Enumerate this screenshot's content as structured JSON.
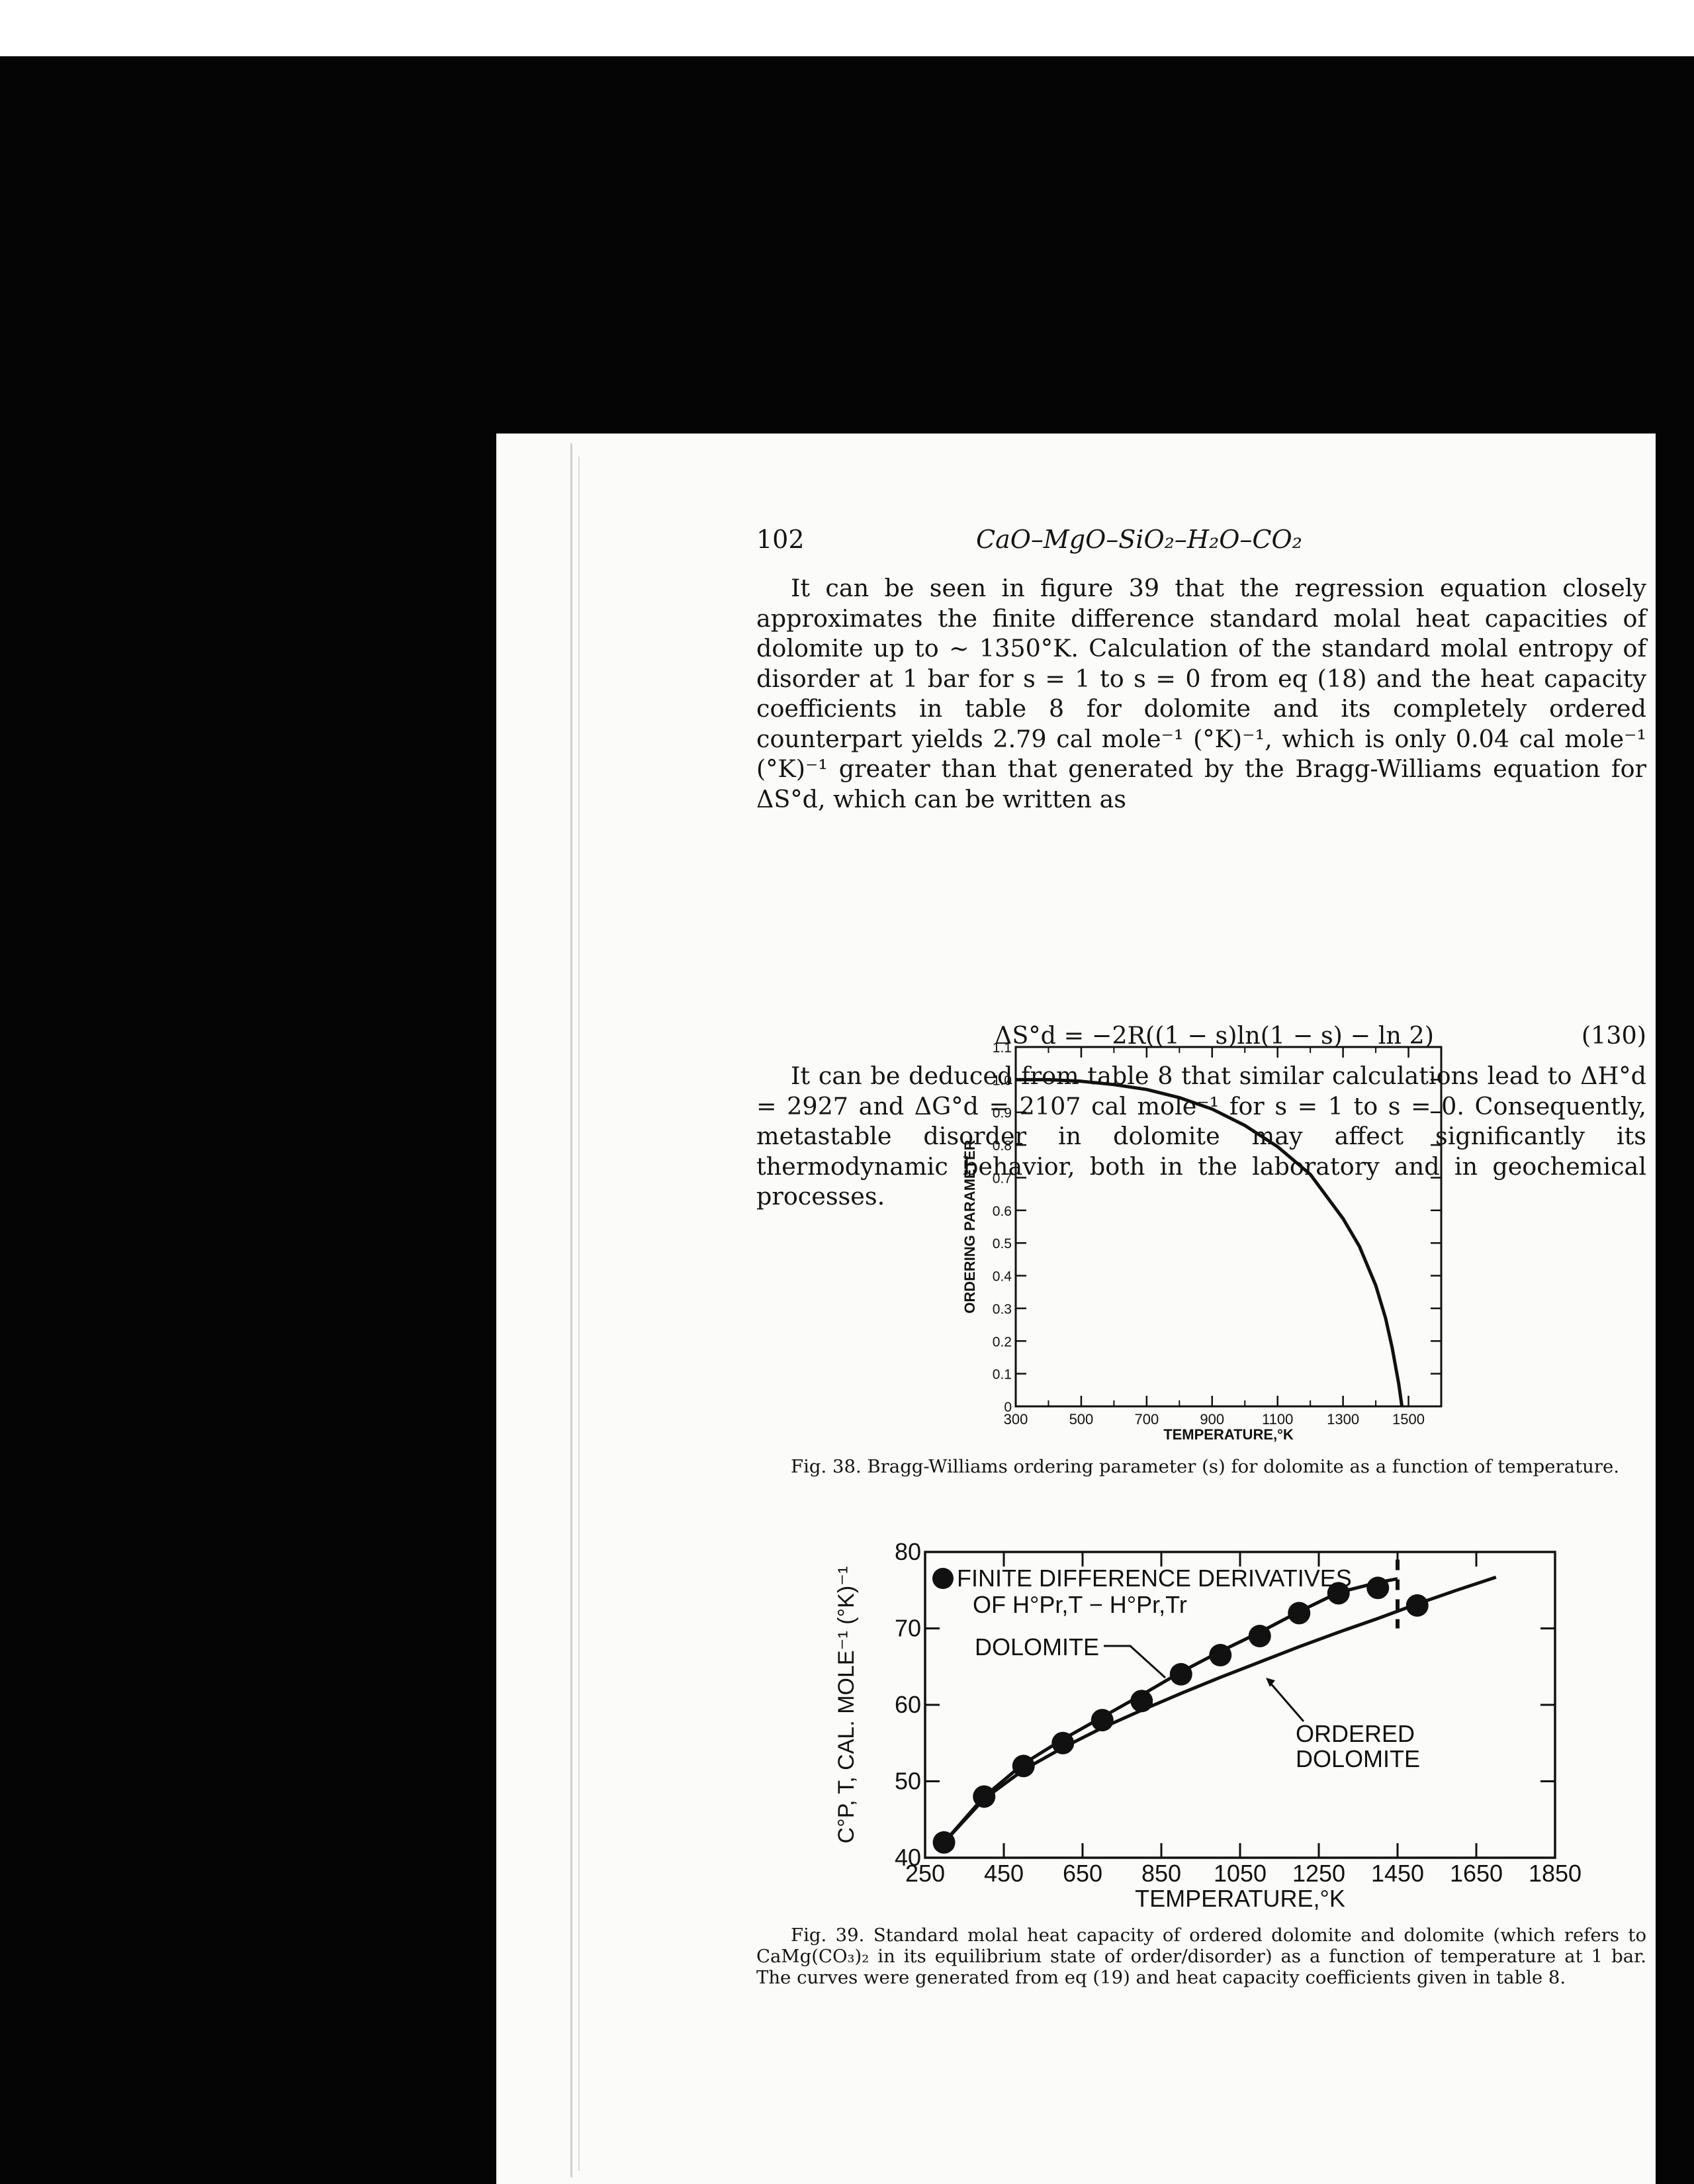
{
  "page": {
    "number": "102",
    "running_head": "CaO–MgO–SiO₂–H₂O–CO₂"
  },
  "paragraphs": [
    "It can be seen in figure 39 that the regression equation closely approximates the finite difference standard molal heat capacities of dolomite up to ~ 1350°K. Calculation of the standard molal entropy of disorder at 1 bar for s = 1 to s = 0 from eq (18) and the heat capacity coefficients in table 8 for dolomite and its completely ordered counterpart yields 2.79 cal mole⁻¹ (°K)⁻¹, which is only 0.04 cal mole⁻¹ (°K)⁻¹ greater than that generated by the Bragg-Williams equation for ΔS°d, which can be written as",
    "It can be deduced from table 8 that similar calculations lead to ΔH°d = 2927 and ΔG°d = 2107 cal mole⁻¹ for s = 1 to s = 0. Consequently, metastable disorder in dolomite may affect significantly its thermodynamic behavior, both in the laboratory and in geochemical processes."
  ],
  "equation": {
    "text": "ΔS°d = −2R((1 − s)ln(1 − s) − ln 2)",
    "number": "(130)"
  },
  "fig38": {
    "caption": "Fig. 38. Bragg-Williams ordering parameter (s) for dolomite as a function of temperature.",
    "chart_data": {
      "type": "line",
      "title": "",
      "xlabel": "TEMPERATURE,°K",
      "ylabel": "ORDERING PARAMETER",
      "xlim": [
        300,
        1600
      ],
      "ylim": [
        0,
        1.1
      ],
      "x_ticks": [
        "300",
        "500",
        "700",
        "900",
        "1100",
        "1300",
        "1500"
      ],
      "y_ticks": [
        "0",
        "0.1",
        "0.2",
        "0.3",
        "0.4",
        "0.5",
        "0.6",
        "0.7",
        "0.8",
        "0.9",
        "1.0",
        "1.1"
      ],
      "series": [
        {
          "name": "",
          "x": [
            300,
            400,
            500,
            600,
            700,
            800,
            900,
            1000,
            1100,
            1200,
            1300,
            1350,
            1400,
            1430,
            1450,
            1470,
            1480
          ],
          "y": [
            1.0,
            1.0,
            0.995,
            0.985,
            0.97,
            0.945,
            0.91,
            0.86,
            0.795,
            0.71,
            0.575,
            0.49,
            0.37,
            0.27,
            0.18,
            0.07,
            0.0
          ]
        }
      ]
    }
  },
  "fig39": {
    "caption": "Fig. 39. Standard molal heat capacity of ordered dolomite and dolomite (which refers to CaMg(CO₃)₂ in its equilibrium state of order/disorder) as a function of temperature at 1 bar. The curves were generated from eq (19) and heat capacity coefficients given in table 8.",
    "chart_data": {
      "type": "line",
      "title": "",
      "xlabel": "TEMPERATURE,°K",
      "ylabel": "C°P, T, CAL. MOLE⁻¹ (°K)⁻¹",
      "xlim": [
        250,
        1850
      ],
      "ylim": [
        40,
        80
      ],
      "x_ticks": [
        "250",
        "450",
        "650",
        "850",
        "1050",
        "1250",
        "1450",
        "1650",
        "1850"
      ],
      "y_ticks": [
        "40",
        "50",
        "60",
        "70",
        "80"
      ],
      "legend": [
        "FINITE DIFFERENCE DERIVATIVES",
        "OF H°Pr,T − H°Pr,Tr"
      ],
      "annotations": [
        "DOLOMITE",
        "ORDERED",
        "DOLOMITE"
      ],
      "series": [
        {
          "name": "DOLOMITE",
          "x": [
            298,
            400,
            500,
            600,
            700,
            800,
            900,
            1000,
            1100,
            1200,
            1300,
            1400,
            1450
          ],
          "y": [
            42,
            48,
            52.3,
            55.5,
            58.4,
            61.3,
            64.3,
            67,
            69.5,
            72.2,
            74.7,
            76,
            76.5
          ]
        },
        {
          "name": "ORDERED DOLOMITE",
          "x": [
            298,
            400,
            500,
            600,
            700,
            800,
            900,
            1000,
            1100,
            1200,
            1300,
            1400,
            1500,
            1600,
            1700
          ],
          "y": [
            42,
            47.7,
            51.5,
            54.4,
            57,
            59.3,
            61.5,
            63.6,
            65.6,
            67.6,
            69.5,
            71.3,
            73.2,
            75,
            76.7
          ]
        },
        {
          "name": "FINITE DIFFERENCE DERIVATIVES OF H°Pr,T − H°Pr,Tr",
          "x": [
            298,
            400,
            500,
            600,
            700,
            800,
            900,
            1000,
            1100,
            1200,
            1300,
            1400,
            1500
          ],
          "y": [
            42,
            48,
            52,
            55,
            58,
            60.5,
            64,
            66.5,
            69,
            72,
            74.6,
            75.3,
            73
          ]
        }
      ],
      "dashed_marker_x": 1450
    }
  }
}
